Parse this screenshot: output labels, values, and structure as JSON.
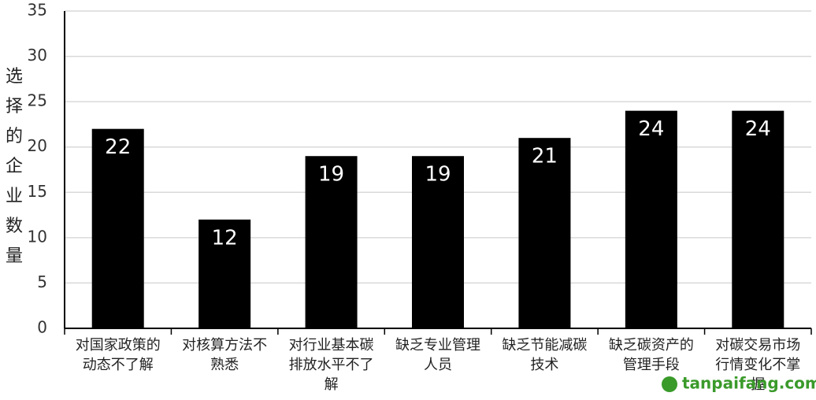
{
  "chart_data": {
    "type": "bar",
    "y_label": "选择的企业数量",
    "categories": [
      "对国家政策的动态不了解",
      "对核算方法不熟悉",
      "对行业基本碳排放水平不了解",
      "缺乏专业管理人员",
      "缺乏节能减碳技术",
      "缺乏碳资产的管理手段",
      "对碳交易市场行情变化不掌握"
    ],
    "values": [
      22,
      12,
      19,
      19,
      21,
      24,
      24
    ],
    "color": "#000000",
    "ylim": [
      0,
      35
    ],
    "yticks": [
      0,
      5,
      10,
      15,
      20,
      25,
      30,
      35
    ],
    "grid": true,
    "watermark": "tanpaifang.com"
  }
}
